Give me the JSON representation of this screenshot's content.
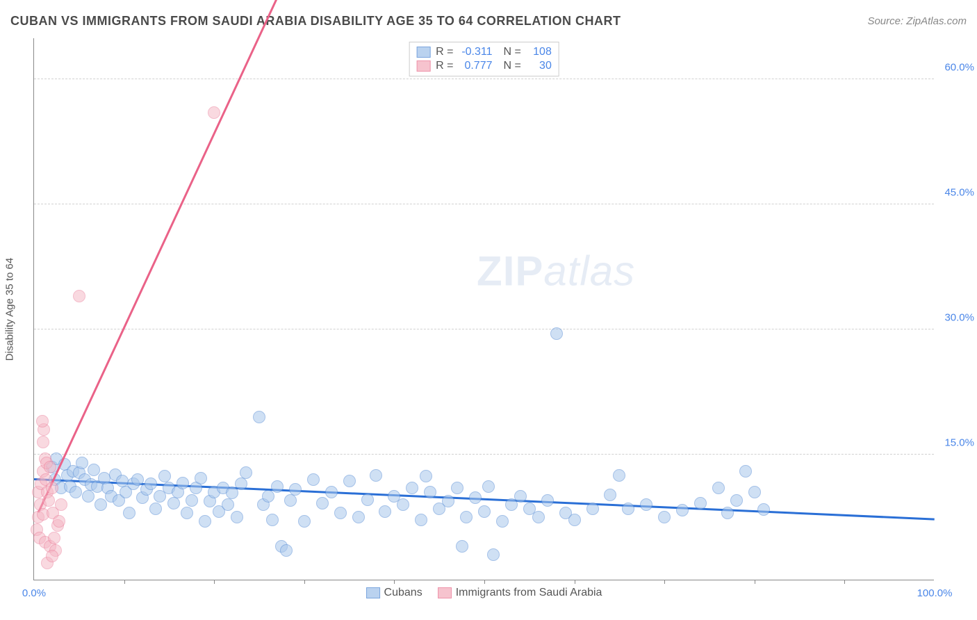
{
  "title": "CUBAN VS IMMIGRANTS FROM SAUDI ARABIA DISABILITY AGE 35 TO 64 CORRELATION CHART",
  "source": "Source: ZipAtlas.com",
  "y_axis_label": "Disability Age 35 to 64",
  "watermark_bold": "ZIP",
  "watermark_rest": "atlas",
  "chart": {
    "xlim": [
      0,
      100
    ],
    "ylim": [
      0,
      65
    ],
    "x_ticks_minor": [
      10,
      20,
      30,
      40,
      50,
      60,
      70,
      80,
      90
    ],
    "x_tick_labels": [
      {
        "pos": 0,
        "label": "0.0%"
      },
      {
        "pos": 100,
        "label": "100.0%"
      }
    ],
    "y_gridlines": [
      15,
      30,
      45,
      60
    ],
    "y_tick_labels": [
      {
        "pos": 15,
        "label": "15.0%"
      },
      {
        "pos": 30,
        "label": "30.0%"
      },
      {
        "pos": 45,
        "label": "45.0%"
      },
      {
        "pos": 60,
        "label": "60.0%"
      }
    ],
    "marker_radius": 9
  },
  "series": [
    {
      "name": "Cubans",
      "fill": "#a9c7ec",
      "stroke": "#5b8fd6",
      "fill_opacity": 0.55,
      "line_color": "#2a6fd6",
      "R": "-0.311",
      "N": "108",
      "trend": {
        "x1": 0,
        "y1": 12.0,
        "x2": 100,
        "y2": 7.2
      },
      "points": [
        [
          2.0,
          13.5
        ],
        [
          2.3,
          12.0
        ],
        [
          2.5,
          14.5
        ],
        [
          3.0,
          11.0
        ],
        [
          3.4,
          13.8
        ],
        [
          3.7,
          12.5
        ],
        [
          4.0,
          11.2
        ],
        [
          4.3,
          13.0
        ],
        [
          4.6,
          10.5
        ],
        [
          5.0,
          12.8
        ],
        [
          5.3,
          14.0
        ],
        [
          5.6,
          12.0
        ],
        [
          6.0,
          10.0
        ],
        [
          6.3,
          11.4
        ],
        [
          6.6,
          13.2
        ],
        [
          7.0,
          11.2
        ],
        [
          7.4,
          9.0
        ],
        [
          7.8,
          12.2
        ],
        [
          8.2,
          11.0
        ],
        [
          8.6,
          10.0
        ],
        [
          9.0,
          12.6
        ],
        [
          9.4,
          9.5
        ],
        [
          9.8,
          11.8
        ],
        [
          10.2,
          10.5
        ],
        [
          10.6,
          8.0
        ],
        [
          11.0,
          11.5
        ],
        [
          11.5,
          12.0
        ],
        [
          12.0,
          9.8
        ],
        [
          12.5,
          10.8
        ],
        [
          13.0,
          11.5
        ],
        [
          13.5,
          8.5
        ],
        [
          14.0,
          10.0
        ],
        [
          14.5,
          12.4
        ],
        [
          15.0,
          11.0
        ],
        [
          15.5,
          9.2
        ],
        [
          16.0,
          10.5
        ],
        [
          16.5,
          11.6
        ],
        [
          17.0,
          8.0
        ],
        [
          17.5,
          9.5
        ],
        [
          18.0,
          11.0
        ],
        [
          18.5,
          12.2
        ],
        [
          19.0,
          7.0
        ],
        [
          19.5,
          9.4
        ],
        [
          20.0,
          10.5
        ],
        [
          20.5,
          8.2
        ],
        [
          21.0,
          11.0
        ],
        [
          21.5,
          9.0
        ],
        [
          22.0,
          10.4
        ],
        [
          22.5,
          7.5
        ],
        [
          23.0,
          11.5
        ],
        [
          23.5,
          12.8
        ],
        [
          25.0,
          19.5
        ],
        [
          25.5,
          9.0
        ],
        [
          26.0,
          10.0
        ],
        [
          26.5,
          7.2
        ],
        [
          27.0,
          11.2
        ],
        [
          27.5,
          4.0
        ],
        [
          28.0,
          3.5
        ],
        [
          28.5,
          9.5
        ],
        [
          29.0,
          10.8
        ],
        [
          30.0,
          7.0
        ],
        [
          31.0,
          12.0
        ],
        [
          32.0,
          9.2
        ],
        [
          33.0,
          10.5
        ],
        [
          34.0,
          8.0
        ],
        [
          35.0,
          11.8
        ],
        [
          36.0,
          7.5
        ],
        [
          37.0,
          9.6
        ],
        [
          38.0,
          12.5
        ],
        [
          39.0,
          8.2
        ],
        [
          40.0,
          10.0
        ],
        [
          41.0,
          9.0
        ],
        [
          42.0,
          11.0
        ],
        [
          43.0,
          7.2
        ],
        [
          43.5,
          12.4
        ],
        [
          44.0,
          10.5
        ],
        [
          45.0,
          8.5
        ],
        [
          46.0,
          9.4
        ],
        [
          47.0,
          11.0
        ],
        [
          47.5,
          4.0
        ],
        [
          48.0,
          7.5
        ],
        [
          49.0,
          9.8
        ],
        [
          50.0,
          8.2
        ],
        [
          50.5,
          11.2
        ],
        [
          51.0,
          3.0
        ],
        [
          52.0,
          7.0
        ],
        [
          53.0,
          9.0
        ],
        [
          54.0,
          10.0
        ],
        [
          55.0,
          8.5
        ],
        [
          56.0,
          7.5
        ],
        [
          57.0,
          9.5
        ],
        [
          58.0,
          29.5
        ],
        [
          59.0,
          8.0
        ],
        [
          60.0,
          7.2
        ],
        [
          62.0,
          8.5
        ],
        [
          64.0,
          10.2
        ],
        [
          65.0,
          12.5
        ],
        [
          66.0,
          8.5
        ],
        [
          68.0,
          9.0
        ],
        [
          70.0,
          7.5
        ],
        [
          72.0,
          8.3
        ],
        [
          74.0,
          9.2
        ],
        [
          76.0,
          11.0
        ],
        [
          77.0,
          8.0
        ],
        [
          78.0,
          9.5
        ],
        [
          79.0,
          13.0
        ],
        [
          80.0,
          10.5
        ],
        [
          81.0,
          8.4
        ]
      ]
    },
    {
      "name": "Immigrants from Saudi Arabia",
      "fill": "#f5b5c3",
      "stroke": "#ea7a97",
      "fill_opacity": 0.5,
      "line_color": "#ea6288",
      "R": "0.777",
      "N": "30",
      "trend": {
        "x1": 0.5,
        "y1": 8.0,
        "x2": 28,
        "y2": 72
      },
      "points": [
        [
          0.3,
          6.0
        ],
        [
          0.5,
          7.5
        ],
        [
          0.7,
          9.0
        ],
        [
          0.5,
          10.5
        ],
        [
          0.8,
          11.5
        ],
        [
          1.0,
          13.0
        ],
        [
          1.2,
          14.5
        ],
        [
          0.6,
          5.0
        ],
        [
          1.0,
          7.8
        ],
        [
          1.3,
          12.0
        ],
        [
          1.5,
          10.5
        ],
        [
          1.0,
          16.5
        ],
        [
          1.1,
          18.0
        ],
        [
          0.9,
          19.0
        ],
        [
          1.4,
          14.0
        ],
        [
          1.8,
          13.5
        ],
        [
          2.0,
          11.0
        ],
        [
          1.6,
          9.5
        ],
        [
          2.1,
          8.0
        ],
        [
          1.2,
          4.5
        ],
        [
          1.8,
          4.0
        ],
        [
          2.2,
          5.0
        ],
        [
          2.4,
          3.5
        ],
        [
          1.5,
          2.0
        ],
        [
          2.0,
          2.8
        ],
        [
          2.6,
          6.5
        ],
        [
          2.8,
          7.0
        ],
        [
          3.0,
          9.0
        ],
        [
          5.0,
          34.0
        ],
        [
          20.0,
          56.0
        ]
      ]
    }
  ],
  "legend_labels": {
    "series1": "Cubans",
    "series2": "Immigrants from Saudi Arabia"
  },
  "stats_labels": {
    "R": "R =",
    "N": "N ="
  }
}
